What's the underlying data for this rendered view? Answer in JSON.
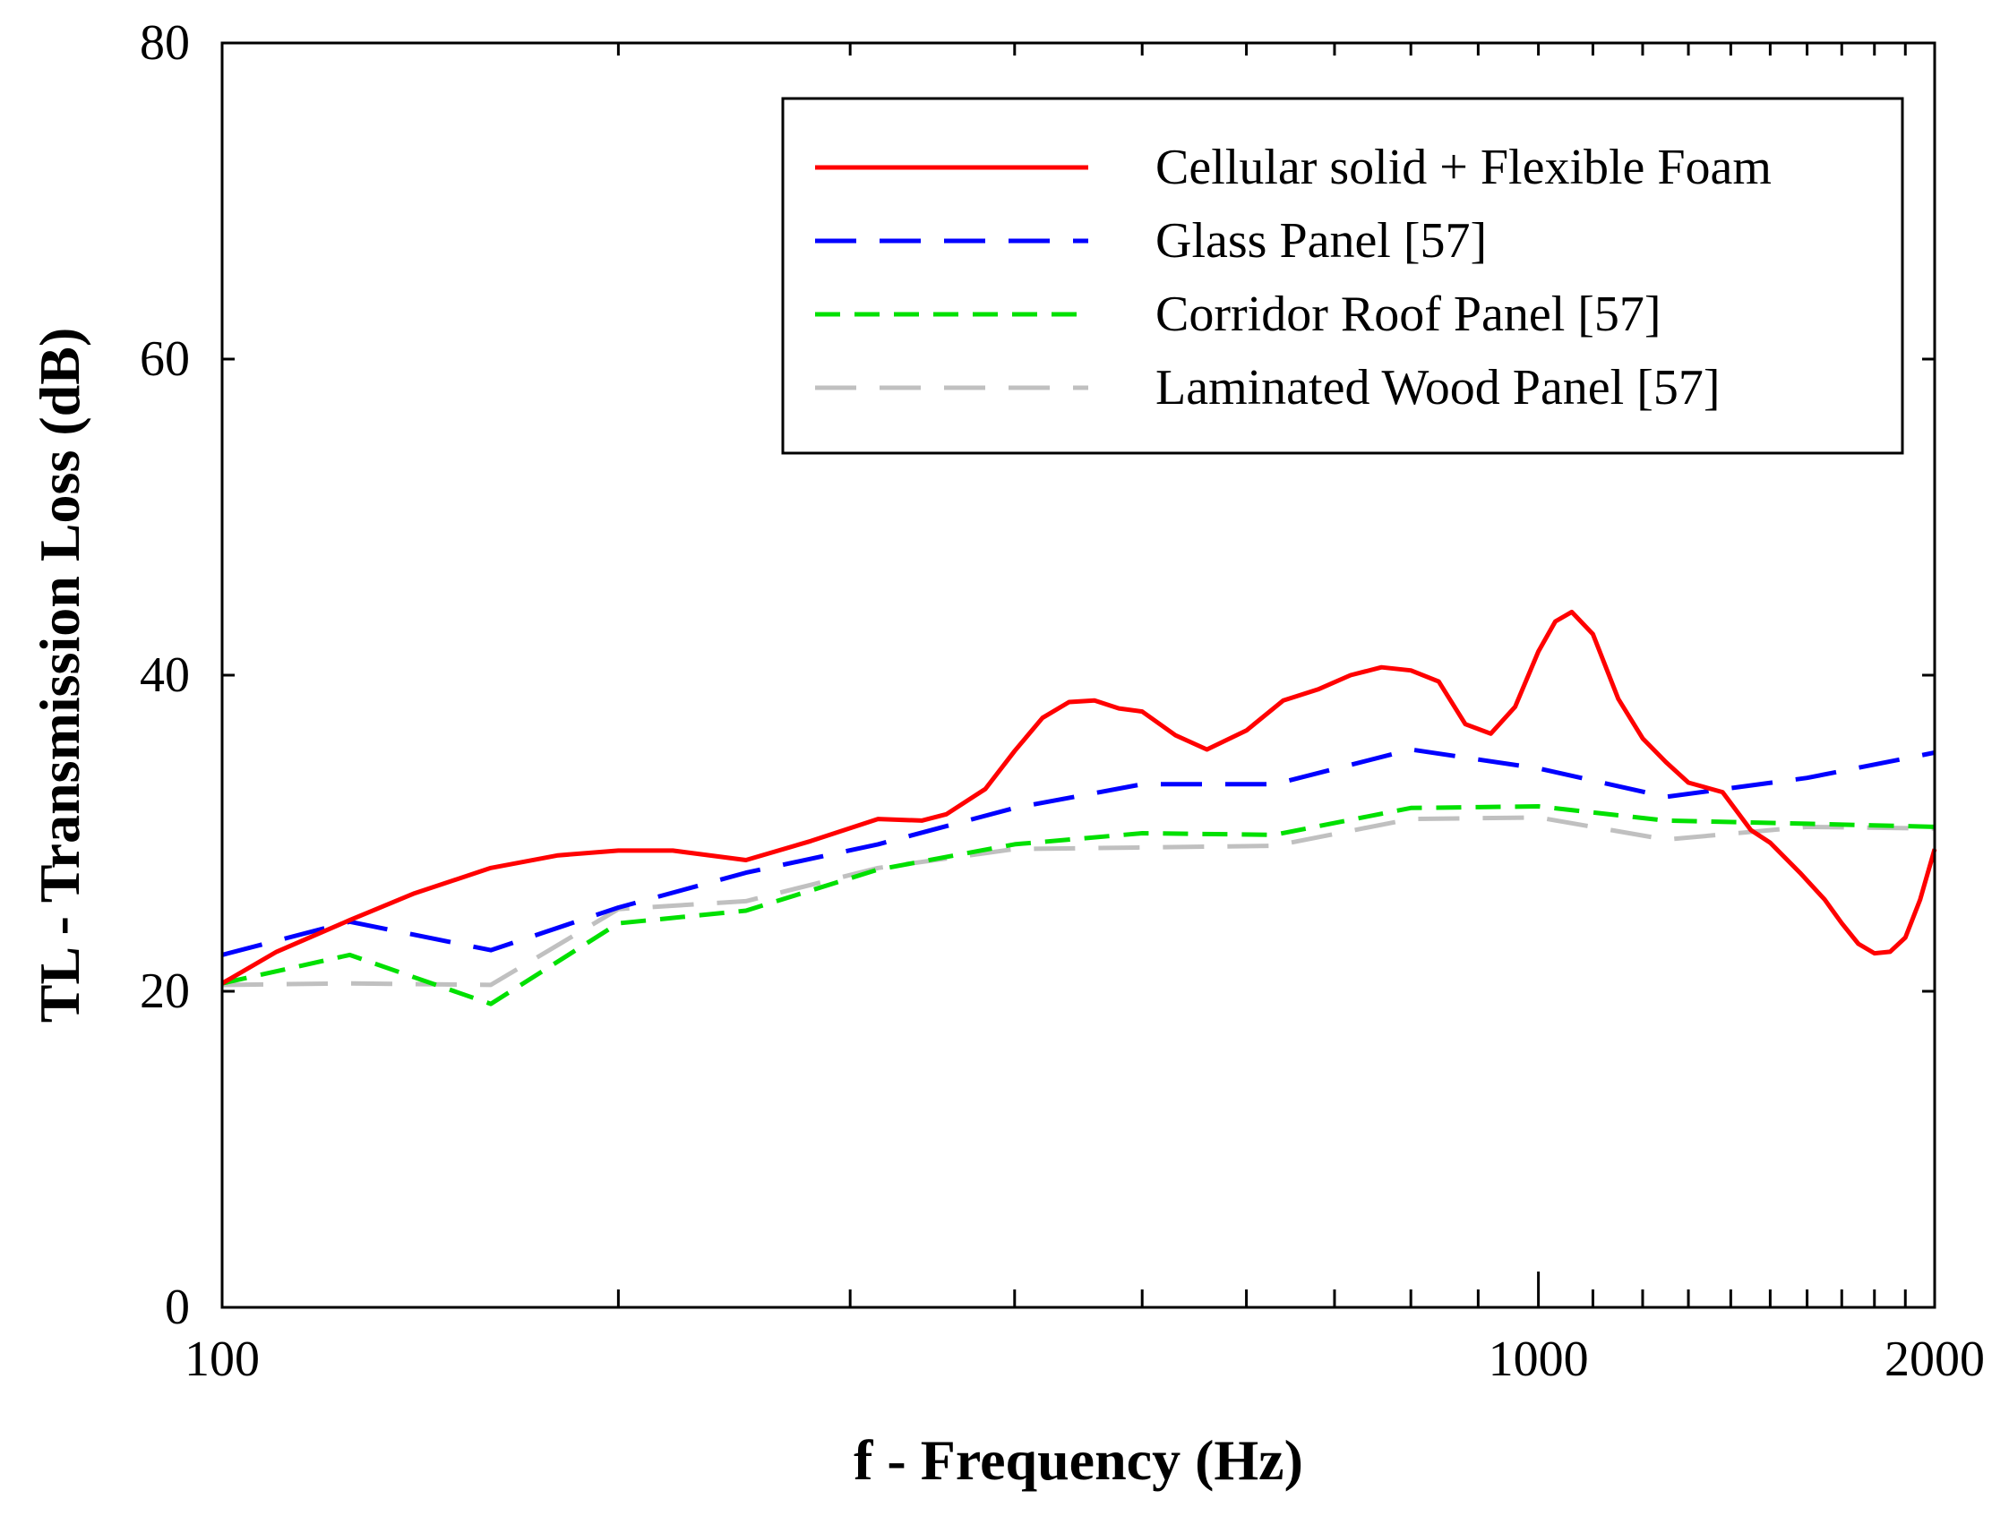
{
  "chart_data": {
    "type": "line",
    "title": "",
    "xlabel": "f - Frequency (Hz)",
    "ylabel": "TL - Transmission Loss (dB)",
    "xscale": "log",
    "xlim": [
      100,
      2000
    ],
    "ylim": [
      0,
      80
    ],
    "x_tick_labels": [
      {
        "value": 100,
        "label": "100"
      },
      {
        "value": 1000,
        "label": "1000"
      },
      {
        "value": 2000,
        "label": "2000"
      }
    ],
    "y_tick_labels": [
      {
        "value": 0,
        "label": "0"
      },
      {
        "value": 20,
        "label": "20"
      },
      {
        "value": 40,
        "label": "40"
      },
      {
        "value": 60,
        "label": "60"
      },
      {
        "value": 80,
        "label": "80"
      }
    ],
    "x_minor_ticks": [
      200,
      300,
      400,
      500,
      600,
      700,
      800,
      900,
      1000,
      1100,
      1200,
      1300,
      1400,
      1500,
      1600,
      1700,
      1800,
      1900
    ],
    "grid": false,
    "legend_position": "top-right",
    "series": [
      {
        "name": "Cellular solid + Flexible Foam",
        "color": "#ff0000",
        "style": "solid",
        "x": [
          100,
          110,
          125,
          140,
          160,
          180,
          200,
          220,
          250,
          280,
          315,
          340,
          355,
          380,
          400,
          420,
          440,
          460,
          480,
          500,
          530,
          560,
          600,
          640,
          680,
          720,
          760,
          800,
          840,
          880,
          920,
          960,
          1000,
          1030,
          1060,
          1100,
          1150,
          1200,
          1250,
          1300,
          1380,
          1450,
          1500,
          1580,
          1650,
          1700,
          1750,
          1800,
          1850,
          1900,
          1950,
          2000
        ],
        "y": [
          20.5,
          22.5,
          24.5,
          26.2,
          27.8,
          28.6,
          28.9,
          28.9,
          28.3,
          29.5,
          30.9,
          30.8,
          31.2,
          32.8,
          35.2,
          37.3,
          38.3,
          38.4,
          37.9,
          37.7,
          36.2,
          35.3,
          36.5,
          38.4,
          39.1,
          40.0,
          40.5,
          40.3,
          39.6,
          36.9,
          36.3,
          38.0,
          41.5,
          43.4,
          44.0,
          42.6,
          38.5,
          36.0,
          34.5,
          33.2,
          32.6,
          30.2,
          29.4,
          27.5,
          25.8,
          24.3,
          23.0,
          22.4,
          22.5,
          23.4,
          25.8,
          29.0
        ]
      },
      {
        "name": "Glass Panel [57]",
        "color": "#0000ff",
        "style": "long-dash",
        "x": [
          100,
          125,
          160,
          200,
          250,
          315,
          400,
          500,
          630,
          800,
          1000,
          1250,
          1600,
          2000
        ],
        "y": [
          22.3,
          24.4,
          22.6,
          25.3,
          27.5,
          29.3,
          31.6,
          33.1,
          33.1,
          35.3,
          34.1,
          32.3,
          33.5,
          35.1
        ]
      },
      {
        "name": "Corridor Roof  Panel [57]",
        "color": "#00e000",
        "style": "dash",
        "x": [
          100,
          125,
          160,
          200,
          250,
          315,
          400,
          500,
          630,
          800,
          1000,
          1250,
          1600,
          2000
        ],
        "y": [
          20.5,
          22.3,
          19.2,
          24.3,
          25.1,
          27.7,
          29.3,
          30.0,
          29.9,
          31.6,
          31.7,
          30.8,
          30.6,
          30.4
        ]
      },
      {
        "name": "Laminated Wood Panel [57]",
        "color": "#c0c0c0",
        "style": "long-dash",
        "x": [
          100,
          125,
          160,
          200,
          250,
          315,
          400,
          500,
          630,
          800,
          1000,
          1250,
          1600,
          2000
        ],
        "y": [
          20.4,
          20.5,
          20.4,
          25.2,
          25.7,
          27.8,
          29.0,
          29.1,
          29.2,
          30.9,
          31.0,
          29.6,
          30.4,
          30.3
        ]
      }
    ]
  }
}
